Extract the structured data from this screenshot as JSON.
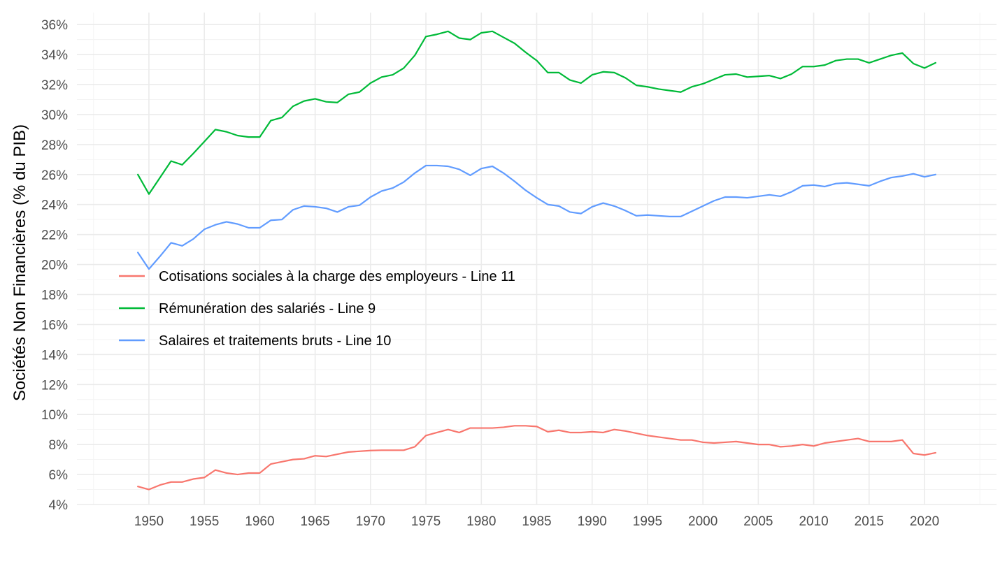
{
  "chart_data": {
    "type": "line",
    "title": "",
    "xlabel": "",
    "ylabel": "Sociétés Non Financières (% du PIB)",
    "xlim": [
      1943.5,
      2026.5
    ],
    "ylim": [
      4,
      36.8
    ],
    "grid": true,
    "legend_position": "inside-middle-left",
    "x_ticks": [
      1950,
      1955,
      1960,
      1965,
      1970,
      1975,
      1980,
      1985,
      1990,
      1995,
      2000,
      2005,
      2010,
      2015,
      2020
    ],
    "y_ticks": [
      4,
      6,
      8,
      10,
      12,
      14,
      16,
      18,
      20,
      22,
      24,
      26,
      28,
      30,
      32,
      34,
      36
    ],
    "y_tick_labels": [
      "4%",
      "6%",
      "8%",
      "10%",
      "12%",
      "14%",
      "16%",
      "18%",
      "20%",
      "22%",
      "24%",
      "26%",
      "28%",
      "30%",
      "32%",
      "34%",
      "36%"
    ],
    "x": [
      1949,
      1950,
      1951,
      1952,
      1953,
      1954,
      1955,
      1956,
      1957,
      1958,
      1959,
      1960,
      1961,
      1962,
      1963,
      1964,
      1965,
      1966,
      1967,
      1968,
      1969,
      1970,
      1971,
      1972,
      1973,
      1974,
      1975,
      1976,
      1977,
      1978,
      1979,
      1980,
      1981,
      1982,
      1983,
      1984,
      1985,
      1986,
      1987,
      1988,
      1989,
      1990,
      1991,
      1992,
      1993,
      1994,
      1995,
      1996,
      1997,
      1998,
      1999,
      2000,
      2001,
      2002,
      2003,
      2004,
      2005,
      2006,
      2007,
      2008,
      2009,
      2010,
      2011,
      2012,
      2013,
      2014,
      2015,
      2016,
      2017,
      2018,
      2019,
      2020,
      2021
    ],
    "series": [
      {
        "name": "Cotisations sociales à la charge des employeurs - Line 11",
        "color": "#F8766D",
        "values": [
          5.2,
          5.0,
          5.3,
          5.5,
          5.5,
          5.7,
          5.8,
          6.3,
          6.1,
          6.0,
          6.1,
          6.1,
          6.7,
          6.85,
          7.0,
          7.05,
          7.25,
          7.2,
          7.35,
          7.5,
          7.55,
          7.6,
          7.62,
          7.62,
          7.62,
          7.85,
          8.6,
          8.8,
          9.0,
          8.8,
          9.1,
          9.1,
          9.1,
          9.15,
          9.25,
          9.25,
          9.2,
          8.85,
          8.95,
          8.8,
          8.8,
          8.85,
          8.8,
          9.0,
          8.9,
          8.75,
          8.6,
          8.5,
          8.4,
          8.3,
          8.3,
          8.15,
          8.1,
          8.15,
          8.2,
          8.1,
          8.0,
          8.0,
          7.85,
          7.9,
          8.0,
          7.9,
          8.1,
          8.2,
          8.3,
          8.4,
          8.2,
          8.2,
          8.2,
          8.3,
          7.4,
          7.3,
          7.45
        ]
      },
      {
        "name": "Rémunération des salariés - Line 9",
        "color": "#00BA38",
        "values": [
          26.0,
          24.7,
          25.8,
          26.9,
          26.65,
          27.4,
          28.2,
          29.0,
          28.85,
          28.6,
          28.5,
          28.5,
          29.6,
          29.8,
          30.55,
          30.9,
          31.05,
          30.85,
          30.8,
          31.35,
          31.5,
          32.1,
          32.5,
          32.65,
          33.1,
          33.95,
          35.2,
          35.35,
          35.55,
          35.1,
          35.0,
          35.45,
          35.55,
          35.15,
          34.75,
          34.15,
          33.6,
          32.8,
          32.8,
          32.3,
          32.1,
          32.65,
          32.85,
          32.8,
          32.45,
          31.95,
          31.85,
          31.7,
          31.6,
          31.5,
          31.85,
          32.05,
          32.35,
          32.65,
          32.7,
          32.5,
          32.55,
          32.6,
          32.4,
          32.7,
          33.2,
          33.2,
          33.3,
          33.6,
          33.7,
          33.7,
          33.45,
          33.7,
          33.95,
          34.1,
          33.4,
          33.1,
          33.45
        ]
      },
      {
        "name": "Salaires et traitements bruts - Line 10",
        "color": "#619CFF",
        "values": [
          20.8,
          19.7,
          20.55,
          21.45,
          21.25,
          21.7,
          22.35,
          22.65,
          22.85,
          22.7,
          22.45,
          22.45,
          22.95,
          23.0,
          23.65,
          23.9,
          23.85,
          23.75,
          23.5,
          23.85,
          23.95,
          24.5,
          24.9,
          25.1,
          25.5,
          26.1,
          26.6,
          26.6,
          26.55,
          26.35,
          25.95,
          26.4,
          26.55,
          26.1,
          25.55,
          24.95,
          24.45,
          24.0,
          23.9,
          23.5,
          23.4,
          23.85,
          24.1,
          23.9,
          23.6,
          23.25,
          23.3,
          23.25,
          23.2,
          23.2,
          23.55,
          23.9,
          24.25,
          24.5,
          24.5,
          24.45,
          24.55,
          24.65,
          24.55,
          24.85,
          25.25,
          25.3,
          25.2,
          25.4,
          25.45,
          25.35,
          25.25,
          25.55,
          25.8,
          25.9,
          26.05,
          25.85,
          26.0
        ]
      }
    ]
  }
}
